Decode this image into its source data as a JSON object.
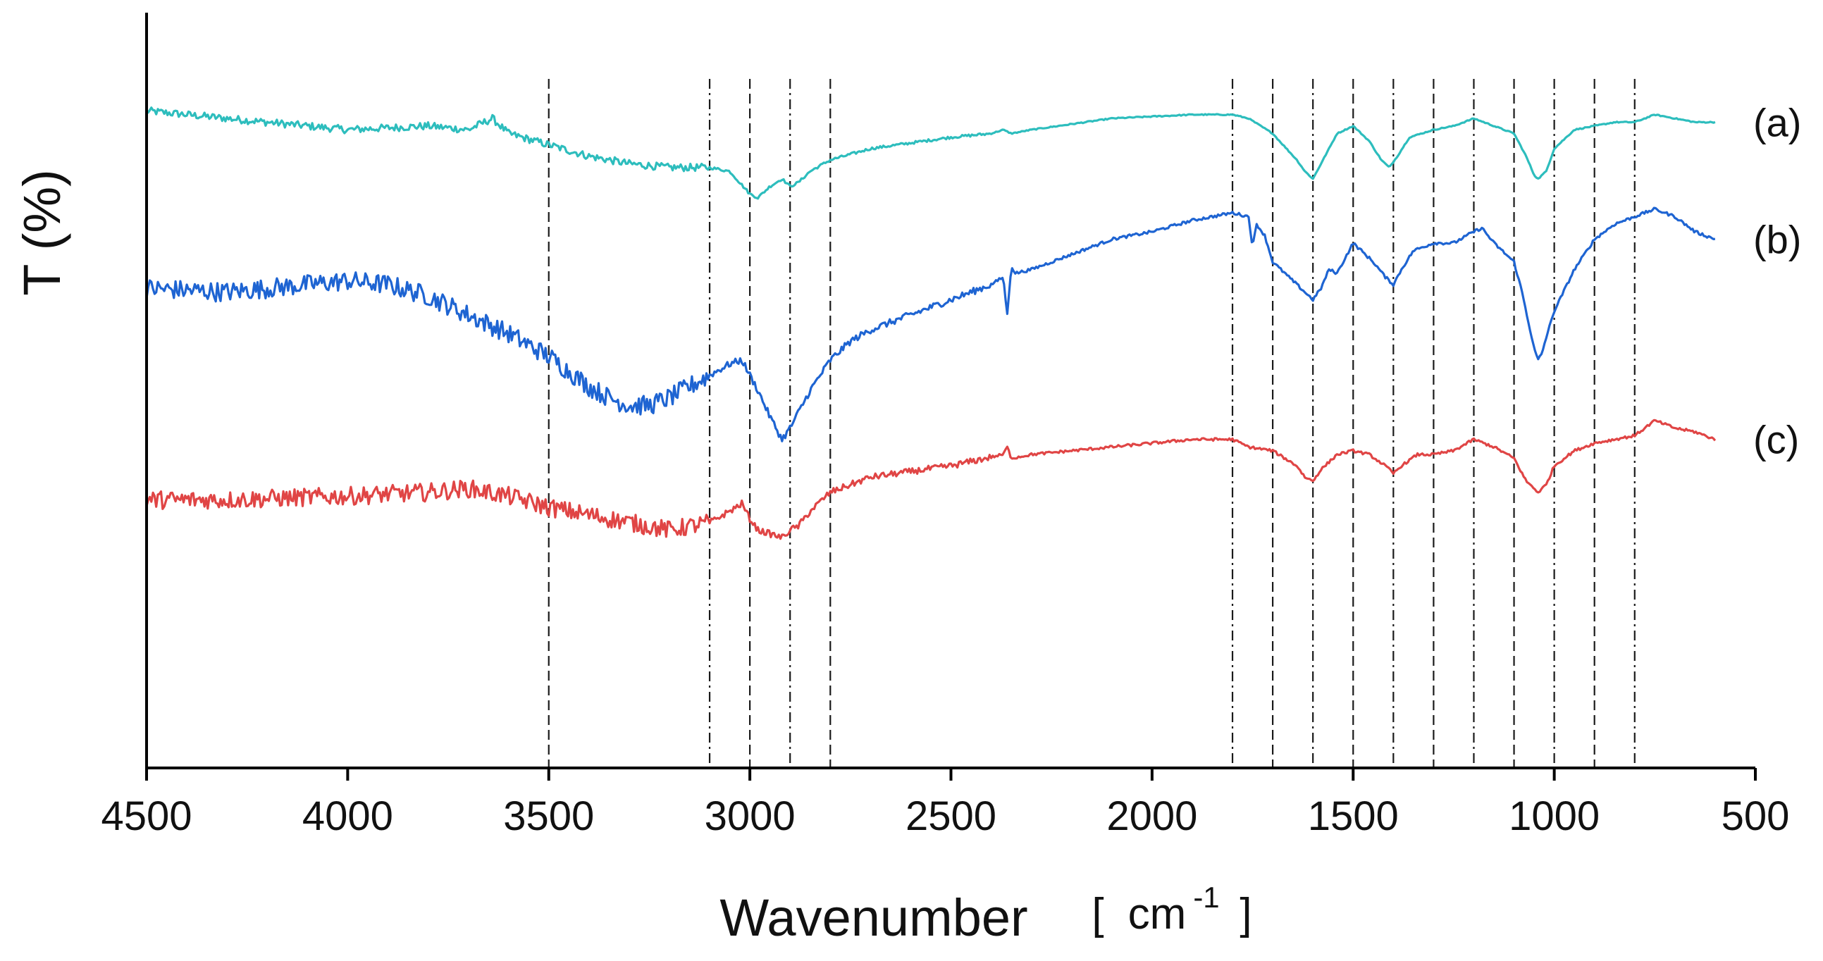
{
  "chart_data": {
    "type": "line",
    "title": "",
    "xlabel": "Wavenumber",
    "xlabel_unit_open": "[",
    "xlabel_unit": "cm",
    "xlabel_unit_exponent": "-1",
    "xlabel_unit_close": "]",
    "ylabel": "T (%)",
    "xlim": [
      4500,
      500
    ],
    "x_reversed": true,
    "x_ticks": [
      4500,
      4000,
      3500,
      3000,
      2500,
      2000,
      1500,
      1000,
      500
    ],
    "x_tick_labels": [
      "4500",
      "4000",
      "3500",
      "3000",
      "2500",
      "2000",
      "1500",
      "1000",
      "500"
    ],
    "ylim": [
      0,
      100
    ],
    "y_ticks_shown": false,
    "grid": false,
    "reference_lines": [
      3500,
      3100,
      3000,
      2900,
      2800,
      1800,
      1700,
      1600,
      1500,
      1400,
      1300,
      1200,
      1100,
      1000,
      900,
      800
    ],
    "series": [
      {
        "name": "(a)",
        "color": "#2dbdbd",
        "noise": 0.5,
        "x": [
          4500,
          4300,
          4000,
          3800,
          3700,
          3640,
          3600,
          3500,
          3400,
          3300,
          3200,
          3100,
          3050,
          3000,
          2980,
          2950,
          2920,
          2900,
          2880,
          2850,
          2800,
          2700,
          2500,
          2400,
          2370,
          2350,
          2300,
          2100,
          1900,
          1800,
          1760,
          1700,
          1640,
          1620,
          1600,
          1580,
          1540,
          1500,
          1460,
          1430,
          1410,
          1390,
          1360,
          1300,
          1250,
          1200,
          1150,
          1100,
          1070,
          1050,
          1040,
          1020,
          1000,
          950,
          900,
          850,
          800,
          750,
          700,
          650,
          600
        ],
        "y": [
          87,
          86,
          84.5,
          85,
          84.5,
          86,
          84,
          82.5,
          81,
          80,
          79.5,
          79.5,
          79,
          76,
          75.5,
          77,
          78,
          77,
          77.5,
          79,
          80.5,
          82,
          83.5,
          84,
          84.5,
          84,
          84.5,
          86,
          86.5,
          86.5,
          86,
          84,
          80.5,
          79,
          78,
          80,
          84,
          85,
          83,
          80.5,
          79.5,
          81,
          83.5,
          84.5,
          85,
          86,
          85,
          84,
          81,
          78.5,
          78,
          79,
          82,
          84.5,
          85,
          85.5,
          85.5,
          86.5,
          86,
          85.5,
          85.5
        ]
      },
      {
        "name": "(b)",
        "color": "#1e64d2",
        "noise": 1.3,
        "x": [
          4500,
          4300,
          4100,
          4000,
          3900,
          3800,
          3700,
          3600,
          3500,
          3450,
          3400,
          3350,
          3300,
          3250,
          3200,
          3150,
          3100,
          3050,
          3020,
          3000,
          2980,
          2950,
          2930,
          2920,
          2900,
          2880,
          2850,
          2800,
          2750,
          2700,
          2600,
          2500,
          2400,
          2370,
          2360,
          2350,
          2340,
          2300,
          2200,
          2100,
          2000,
          1900,
          1850,
          1800,
          1760,
          1750,
          1740,
          1720,
          1700,
          1680,
          1650,
          1620,
          1600,
          1580,
          1560,
          1540,
          1520,
          1500,
          1480,
          1450,
          1420,
          1400,
          1380,
          1350,
          1300,
          1250,
          1200,
          1180,
          1150,
          1100,
          1080,
          1050,
          1040,
          1030,
          1020,
          1000,
          950,
          900,
          850,
          800,
          750,
          700,
          650,
          600
        ],
        "y": [
          63.5,
          63,
          64,
          64.5,
          64,
          62.5,
          60,
          57.5,
          54.5,
          52.5,
          50.5,
          49,
          48,
          48,
          49,
          50.5,
          52,
          53.5,
          54,
          52,
          50,
          46.5,
          44.5,
          43.5,
          45,
          47,
          50,
          54,
          56.5,
          58,
          60,
          62,
          64,
          65,
          60,
          66.5,
          65.5,
          66,
          68,
          70,
          71,
          72.5,
          73,
          73.5,
          73,
          69,
          72,
          70.5,
          67,
          66,
          64.5,
          63,
          62,
          63.5,
          66,
          65.5,
          67.5,
          69.5,
          68.5,
          67,
          65,
          64,
          66,
          68.5,
          69.5,
          69.5,
          71,
          71.5,
          69.5,
          67,
          63,
          55.5,
          54,
          55,
          57,
          60.5,
          66,
          70,
          72,
          73,
          74,
          73,
          71,
          70
        ]
      },
      {
        "name": "(c)",
        "color": "#e04545",
        "noise": 1.2,
        "x": [
          4500,
          4300,
          4000,
          3800,
          3700,
          3600,
          3500,
          3400,
          3300,
          3200,
          3100,
          3050,
          3020,
          3000,
          2980,
          2950,
          2920,
          2900,
          2880,
          2850,
          2800,
          2700,
          2500,
          2370,
          2360,
          2350,
          2300,
          2100,
          1900,
          1800,
          1760,
          1700,
          1640,
          1620,
          1600,
          1580,
          1540,
          1500,
          1460,
          1420,
          1400,
          1380,
          1340,
          1300,
          1250,
          1200,
          1150,
          1100,
          1070,
          1050,
          1040,
          1020,
          1000,
          950,
          900,
          850,
          800,
          750,
          700,
          650,
          600
        ],
        "y": [
          35.5,
          35.5,
          36,
          36.5,
          37,
          36,
          34.5,
          33.5,
          32.5,
          31.5,
          32.5,
          34,
          35,
          33,
          31.5,
          31,
          30.5,
          31.5,
          32,
          34,
          36.5,
          38.5,
          40,
          41.5,
          42.5,
          41,
          41.5,
          42.5,
          43.5,
          43.5,
          42.5,
          42,
          40,
          38.5,
          38,
          39.5,
          41.5,
          42,
          41.5,
          40,
          39,
          40,
          41.5,
          41.5,
          42,
          43.5,
          42.5,
          41,
          38,
          37,
          36.5,
          37.5,
          40,
          42,
          43,
          43.5,
          44,
          46,
          45,
          44.5,
          43.5
        ]
      }
    ]
  }
}
